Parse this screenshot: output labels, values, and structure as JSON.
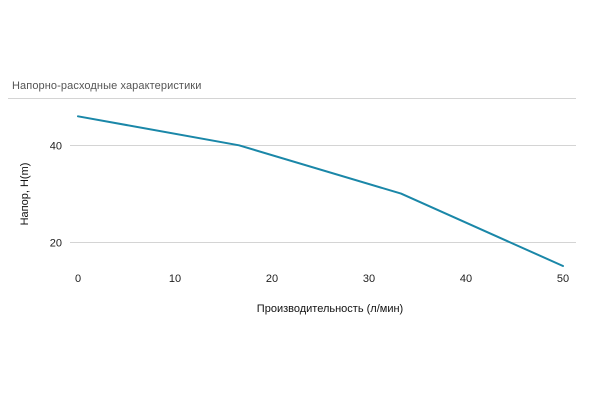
{
  "chart_data": {
    "type": "line",
    "title": "Напорно-расходные характеристики",
    "xlabel": "Производительность (л/мин)",
    "ylabel": "Напор, H(m)",
    "x_ticks": [
      0,
      10,
      20,
      30,
      40,
      50
    ],
    "y_ticks": [
      20,
      40
    ],
    "xlim": [
      0,
      50
    ],
    "ylim": [
      15.2,
      49.8
    ],
    "grid": true,
    "series": [
      {
        "x": [
          0,
          16.6,
          33.3,
          50
        ],
        "y": [
          46,
          40,
          30,
          15
        ]
      }
    ]
  },
  "colors": {
    "line": "#1a87a8",
    "grid": "#d4d4d4",
    "text": "#222222"
  }
}
